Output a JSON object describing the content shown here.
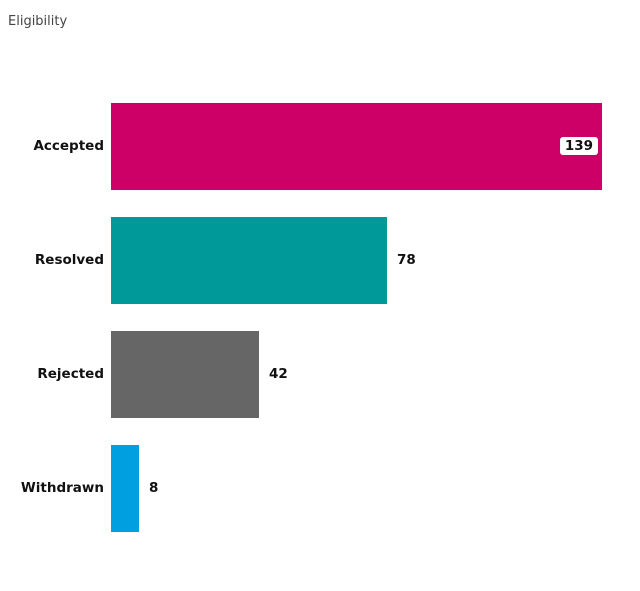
{
  "title": "Eligibility",
  "chart_data": {
    "type": "bar",
    "orientation": "horizontal",
    "title": "Eligibility",
    "categories": [
      "Accepted",
      "Resolved",
      "Rejected",
      "Withdrawn"
    ],
    "values": [
      139,
      78,
      42,
      8
    ],
    "colors": [
      "#cc0066",
      "#009999",
      "#666666",
      "#009fe0"
    ],
    "xlabel": "",
    "ylabel": "",
    "xlim": [
      0,
      139
    ],
    "grid": false,
    "legend": "none",
    "data_labels": true
  },
  "labels": {
    "accepted": "Accepted",
    "resolved": "Resolved",
    "rejected": "Rejected",
    "withdrawn": "Withdrawn",
    "accepted_value": "139",
    "resolved_value": "78",
    "rejected_value": "42",
    "withdrawn_value": "8"
  }
}
